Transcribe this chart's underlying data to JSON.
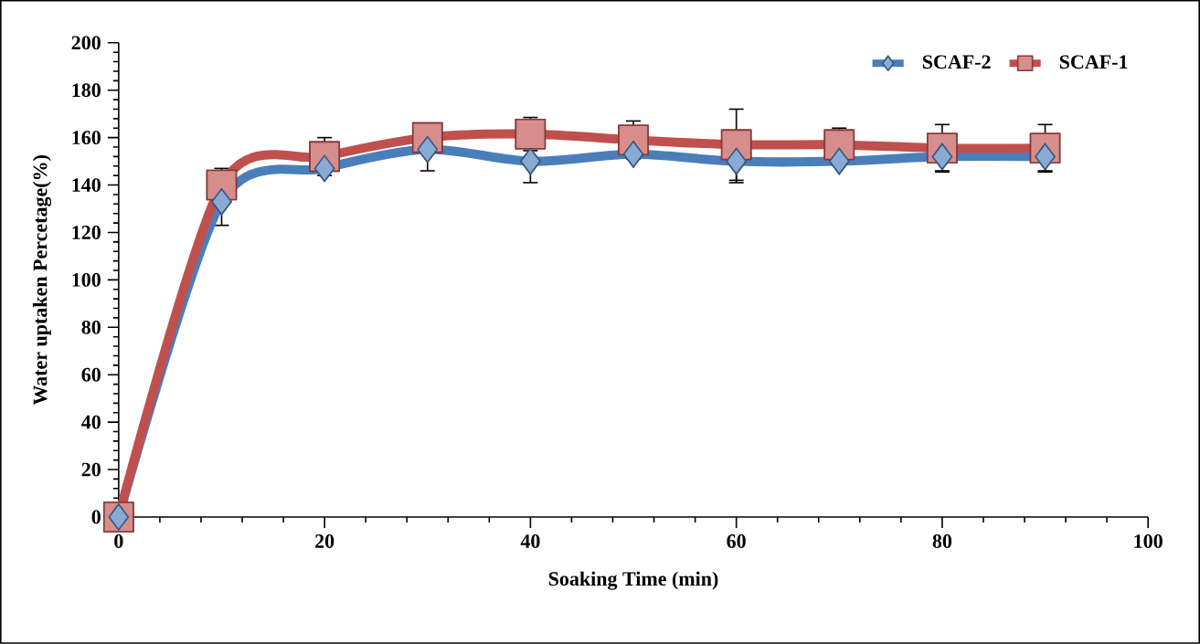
{
  "chart_data": {
    "type": "line",
    "xlabel": "Soaking Time (min)",
    "ylabel": "Water uptaken Percetage(%)",
    "x": [
      0,
      10,
      20,
      30,
      40,
      50,
      60,
      70,
      80,
      90
    ],
    "series": [
      {
        "name": "SCAF-2",
        "color": "#4a7ebb",
        "marker": "diamond",
        "values": [
          0,
          133,
          147,
          155,
          150,
          153,
          150,
          150,
          152,
          152
        ],
        "errors": [
          null,
          10,
          null,
          9,
          9,
          null,
          9,
          null,
          6,
          6
        ]
      },
      {
        "name": "SCAF-1",
        "color": "#c0504d",
        "marker": "square",
        "values": [
          0,
          140,
          152,
          160,
          161.5,
          159,
          157,
          157,
          155.5,
          155.5
        ],
        "errors": [
          null,
          7,
          8,
          null,
          7,
          8,
          15,
          7,
          10,
          10
        ]
      }
    ],
    "xlim": [
      0,
      100
    ],
    "ylim": [
      0,
      200
    ],
    "xticks": [
      0,
      20,
      40,
      60,
      80,
      100
    ],
    "yticks": [
      0,
      20,
      40,
      60,
      80,
      100,
      120,
      140,
      160,
      180,
      200
    ],
    "grid": false,
    "legend": "top right",
    "line_style": "solid"
  }
}
